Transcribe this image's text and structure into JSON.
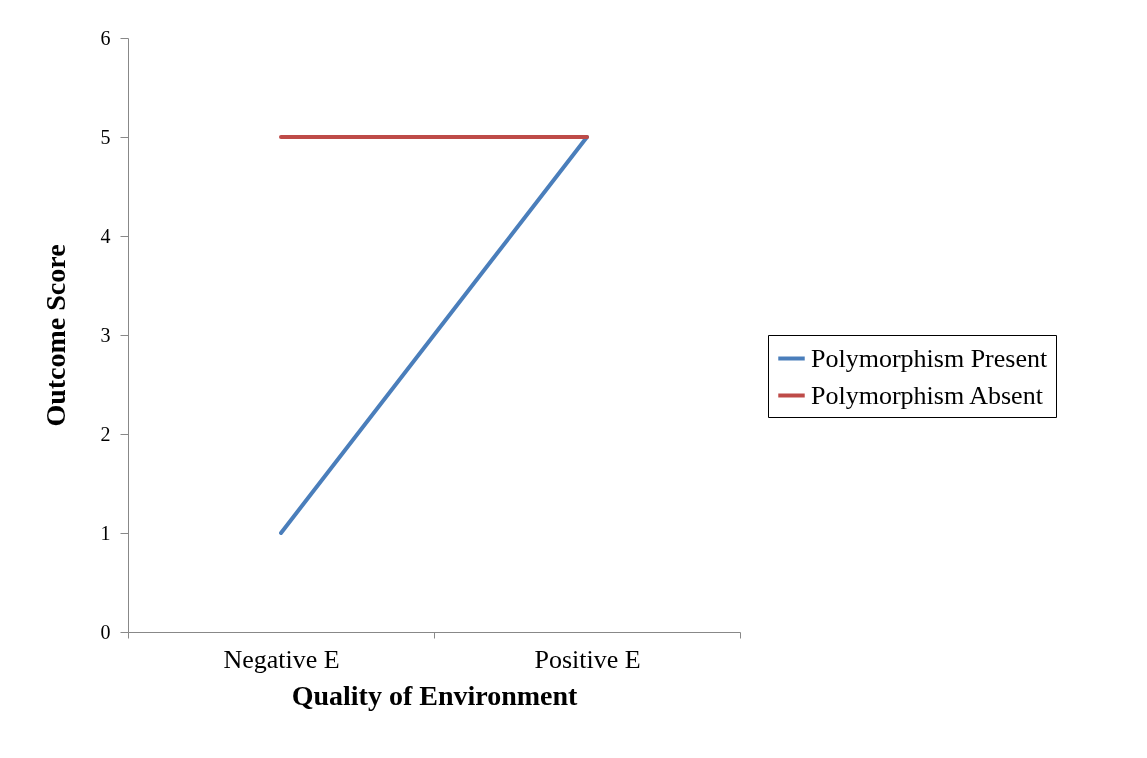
{
  "chart_data": {
    "type": "line",
    "xlabel": "Quality of Environment",
    "ylabel": "Outcome Score",
    "categories": [
      "Negative E",
      "Positive E"
    ],
    "series": [
      {
        "name": "Polymorphism Present",
        "color": "#4a7ebb",
        "values": [
          1,
          5
        ]
      },
      {
        "name": "Polymorphism Absent",
        "color": "#be4b48",
        "values": [
          5,
          5
        ]
      }
    ],
    "ylim": [
      0,
      6
    ],
    "yticks": [
      0,
      1,
      2,
      3,
      4,
      5,
      6
    ],
    "grid": false,
    "legend": "right",
    "marker": "none",
    "line_style": "solid"
  }
}
